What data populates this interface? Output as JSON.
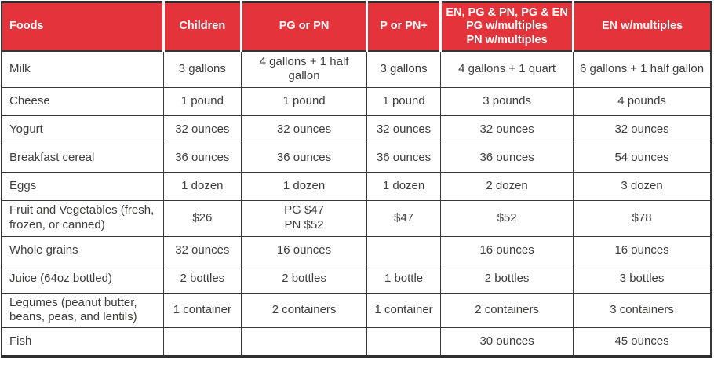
{
  "theme": {
    "header_bg": "#e4333a",
    "header_text": "#ffffff",
    "body_text": "#3d3d3c",
    "grid_line": "#3a3a3a"
  },
  "table": {
    "columns": [
      "Foods",
      "Children",
      "PG or PN",
      "P or PN+",
      "EN, PG & PN, PG & EN\nPG w/multiples\nPN w/multiples",
      "EN w/multiples"
    ],
    "rows": [
      {
        "cells": [
          "Milk",
          "3 gallons",
          "4 gallons + 1 half gallon",
          "3 gallons",
          "4 gallons + 1 quart",
          "6 gallons + 1 half gallon"
        ]
      },
      {
        "cells": [
          "Cheese",
          "1 pound",
          "1 pound",
          "1 pound",
          "3 pounds",
          "4 pounds"
        ]
      },
      {
        "cells": [
          "Yogurt",
          "32 ounces",
          "32 ounces",
          "32 ounces",
          "32 ounces",
          "32 ounces"
        ]
      },
      {
        "cells": [
          "Breakfast cereal",
          "36 ounces",
          "36 ounces",
          "36 ounces",
          "36 ounces",
          "54 ounces"
        ]
      },
      {
        "cells": [
          "Eggs",
          "1 dozen",
          "1 dozen",
          "1 dozen",
          "2 dozen",
          "3 dozen"
        ]
      },
      {
        "cells": [
          "Fruit and Vegetables (fresh, frozen, or canned)",
          "$26",
          "PG $47\nPN $52",
          "$47",
          "$52",
          "$78"
        ]
      },
      {
        "cells": [
          "Whole grains",
          "32 ounces",
          "16 ounces",
          "",
          "16 ounces",
          "16 ounces"
        ]
      },
      {
        "cells": [
          "Juice (64oz bottled)",
          "2 bottles",
          "2 bottles",
          "1 bottle",
          "2 bottles",
          "3 bottles"
        ]
      },
      {
        "cells": [
          "Legumes (peanut butter, beans, peas, and lentils)",
          "1 container",
          "2 containers",
          "1 container",
          "2 containers",
          "3 containers"
        ]
      },
      {
        "cells": [
          "Fish",
          "",
          "",
          "",
          "30 ounces",
          "45 ounces"
        ]
      }
    ]
  }
}
